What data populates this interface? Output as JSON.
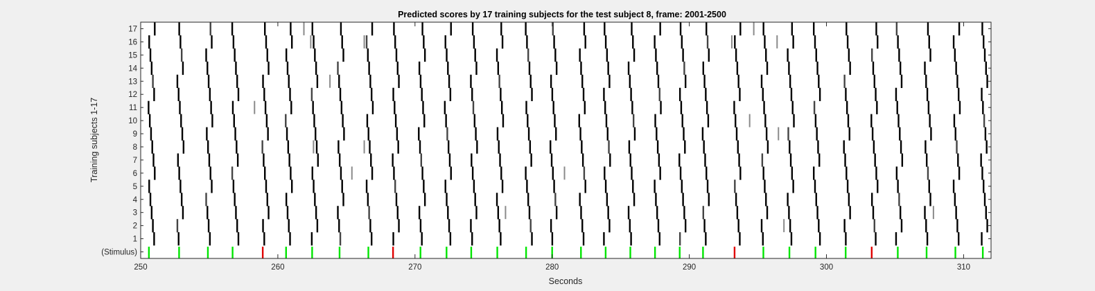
{
  "chart_data": {
    "type": "heatmap",
    "title": "Predicted scores by 17 training subjects for the test subject 8, frame: 2001-2500",
    "xlabel": "Seconds",
    "ylabel": "Training subjects 1-17",
    "xlim": [
      250,
      312
    ],
    "x_ticks": [
      250,
      260,
      270,
      280,
      290,
      300,
      310
    ],
    "x_tick_labels": [
      "250",
      "260",
      "270",
      "280",
      "290",
      "300",
      "310"
    ],
    "y_tick_labels": [
      "(Stimulus)",
      "1",
      "2",
      "3",
      "4",
      "5",
      "6",
      "7",
      "8",
      "9",
      "10",
      "11",
      "12",
      "13",
      "14",
      "15",
      "16",
      "17"
    ],
    "colors": {
      "positive_stimulus": "#00e600",
      "negative_stimulus": "#e00000",
      "prediction": "#000000",
      "background": "#ffffff"
    },
    "stimulus": [
      {
        "t": 250.6,
        "type": "green"
      },
      {
        "t": 252.8,
        "type": "green"
      },
      {
        "t": 254.9,
        "type": "green"
      },
      {
        "t": 256.7,
        "type": "green"
      },
      {
        "t": 258.9,
        "type": "red"
      },
      {
        "t": 260.6,
        "type": "green"
      },
      {
        "t": 262.5,
        "type": "green"
      },
      {
        "t": 264.5,
        "type": "green"
      },
      {
        "t": 266.6,
        "type": "green"
      },
      {
        "t": 268.4,
        "type": "red"
      },
      {
        "t": 270.4,
        "type": "green"
      },
      {
        "t": 272.3,
        "type": "green"
      },
      {
        "t": 274.1,
        "type": "green"
      },
      {
        "t": 276.0,
        "type": "green"
      },
      {
        "t": 278.1,
        "type": "green"
      },
      {
        "t": 280.0,
        "type": "green"
      },
      {
        "t": 282.1,
        "type": "green"
      },
      {
        "t": 283.9,
        "type": "green"
      },
      {
        "t": 285.7,
        "type": "green"
      },
      {
        "t": 287.5,
        "type": "green"
      },
      {
        "t": 289.3,
        "type": "green"
      },
      {
        "t": 291.0,
        "type": "green"
      },
      {
        "t": 293.3,
        "type": "red"
      },
      {
        "t": 295.4,
        "type": "green"
      },
      {
        "t": 297.3,
        "type": "green"
      },
      {
        "t": 299.2,
        "type": "green"
      },
      {
        "t": 301.4,
        "type": "green"
      },
      {
        "t": 303.3,
        "type": "red"
      },
      {
        "t": 305.2,
        "type": "green"
      },
      {
        "t": 307.3,
        "type": "green"
      },
      {
        "t": 309.4,
        "type": "green"
      },
      {
        "t": 311.4,
        "type": "green"
      }
    ],
    "prediction_times": [
      250.8,
      252.9,
      255.0,
      256.9,
      259.1,
      260.8,
      262.7,
      264.6,
      266.7,
      268.6,
      270.5,
      272.4,
      274.3,
      276.2,
      278.3,
      280.1,
      282.2,
      284.0,
      285.8,
      287.7,
      289.5,
      291.2,
      293.5,
      295.5,
      297.4,
      299.3,
      301.5,
      303.5,
      305.3,
      307.4,
      309.5,
      311.5
    ],
    "grey_marks": [
      {
        "t": 261.9,
        "row": 17
      },
      {
        "t": 262.4,
        "row": 16
      },
      {
        "t": 266.3,
        "row": 16
      },
      {
        "t": 294.7,
        "row": 17
      },
      {
        "t": 296.4,
        "row": 16
      },
      {
        "t": 263.8,
        "row": 13
      },
      {
        "t": 258.3,
        "row": 11
      },
      {
        "t": 262.6,
        "row": 8
      },
      {
        "t": 266.3,
        "row": 8
      },
      {
        "t": 265.4,
        "row": 6
      },
      {
        "t": 280.9,
        "row": 6
      },
      {
        "t": 276.6,
        "row": 3
      },
      {
        "t": 307.8,
        "row": 3
      },
      {
        "t": 294.4,
        "row": 10
      },
      {
        "t": 296.5,
        "row": 9
      },
      {
        "t": 293.1,
        "row": 16
      },
      {
        "t": 296.9,
        "row": 2
      }
    ]
  }
}
